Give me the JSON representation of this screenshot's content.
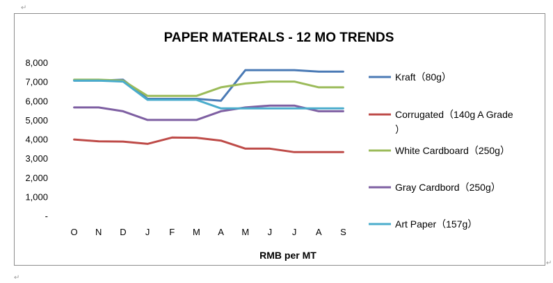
{
  "page": {
    "marks": [
      "↵",
      "↵",
      "↵"
    ]
  },
  "chart_data": {
    "type": "line",
    "title": "PAPER MATERALS - 12 MO TRENDS",
    "xlabel": "RMB per MT",
    "ylabel": "",
    "categories": [
      "O",
      "N",
      "D",
      "J",
      "F",
      "M",
      "A",
      "M",
      "J",
      "J",
      "A",
      "S"
    ],
    "ylim": [
      0,
      8000
    ],
    "yticks": [
      0,
      1000,
      2000,
      3000,
      4000,
      5000,
      6000,
      7000,
      8000
    ],
    "ytick_labels": [
      "-",
      "1,000",
      "2,000",
      "3,000",
      "4,000",
      "5,000",
      "6,000",
      "7,000",
      "8,000"
    ],
    "grid": false,
    "legend_position": "right",
    "series": [
      {
        "name": "Kraft（80g）",
        "legend_lines": [
          "Kraft（80g）"
        ],
        "color": "#4a7ab5",
        "values": [
          7050,
          7050,
          7100,
          6100,
          6100,
          6100,
          6000,
          7600,
          7600,
          7600,
          7520,
          7520
        ]
      },
      {
        "name": "Corrugated（140g A Grade）",
        "legend_lines": [
          "Corrugated（140g A Grade",
          "）"
        ],
        "color": "#be4b48",
        "values": [
          3980,
          3880,
          3870,
          3750,
          4080,
          4070,
          3920,
          3500,
          3500,
          3320,
          3320,
          3320
        ]
      },
      {
        "name": "White Cardboard（250g）",
        "legend_lines": [
          "White Cardboard（250g）"
        ],
        "color": "#9bbb59",
        "values": [
          7100,
          7100,
          7050,
          6250,
          6250,
          6250,
          6700,
          6900,
          7000,
          7000,
          6700,
          6700
        ]
      },
      {
        "name": "Gray Cardbord（250g）",
        "legend_lines": [
          "Gray Cardbord（250g）"
        ],
        "color": "#7e5fa2",
        "values": [
          5650,
          5650,
          5450,
          5000,
          5000,
          5000,
          5450,
          5650,
          5750,
          5750,
          5450,
          5450
        ]
      },
      {
        "name": "Art Paper（157g）",
        "legend_lines": [
          "Art Paper（157g）"
        ],
        "color": "#4aaccc",
        "values": [
          7050,
          7050,
          7000,
          6050,
          6050,
          6050,
          5600,
          5600,
          5600,
          5600,
          5600,
          5600
        ]
      }
    ]
  }
}
